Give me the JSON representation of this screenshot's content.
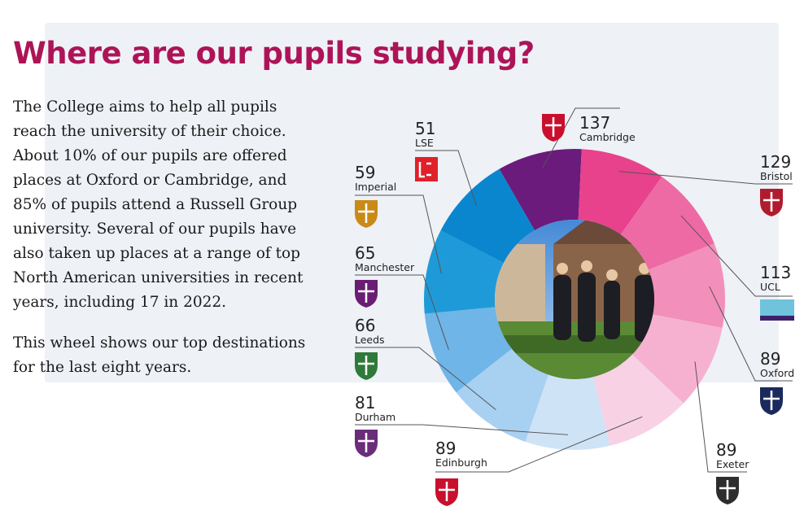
{
  "heading": "Where are our pupils studying?",
  "body": {
    "paragraph1": "The College aims to help all pupils reach the university of their choice. About 10% of our pupils are offered places at Oxford or Cambridge, and 85% of pupils attend a Russell Group university. Several of our pupils have also taken up places at a range of top North American universities in recent years, including 17 in 2022.",
    "paragraph2": "This wheel shows our top destinations for the last eight years."
  },
  "chart_data": {
    "type": "pie",
    "style": "donut",
    "categories": [
      "Cambridge",
      "Bristol",
      "UCL",
      "Oxford",
      "Exeter",
      "Edinburgh",
      "Durham",
      "Leeds",
      "Manchester",
      "Imperial",
      "LSE"
    ],
    "values": [
      137,
      129,
      113,
      89,
      89,
      89,
      81,
      66,
      65,
      59,
      51
    ],
    "colors": [
      "#6a1b7c",
      "#e8428c",
      "#ee6aa5",
      "#f28fbb",
      "#f6b1d0",
      "#f9d1e4",
      "#cfe3f6",
      "#a8d0f1",
      "#6fb5e8",
      "#1f9ad8",
      "#0a86cf"
    ],
    "logos": [
      "cambridge-crest",
      "bristol-crest",
      "ucl-logo",
      "oxford-crest",
      "exeter-crest",
      "edinburgh-crest",
      "durham-crest",
      "leeds-crest",
      "manchester-crest",
      "imperial-crest",
      "lse-logo"
    ],
    "center_image": "photo of four pupils in academic gowns walking outside a college building"
  }
}
